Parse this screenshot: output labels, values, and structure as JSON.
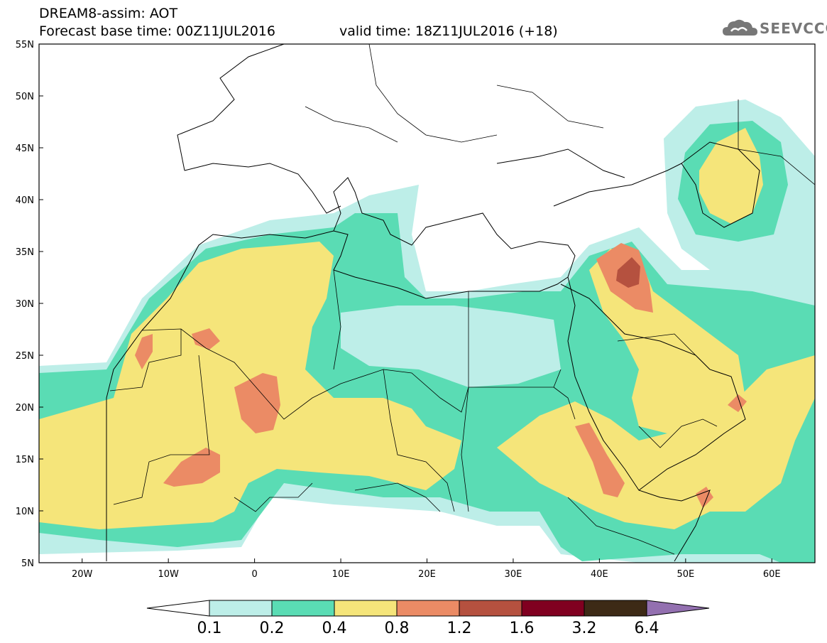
{
  "header": {
    "title": "DREAM8-assim: AOT",
    "base_time": "Forecast base time: 00Z11JUL2016",
    "valid_time": "valid time: 18Z11JUL2016 (+18)"
  },
  "logo": {
    "text": "SEEVCCC",
    "icon": "cloud-icon"
  },
  "map": {
    "lon_range": [
      -25,
      65
    ],
    "lat_range": [
      5,
      55
    ],
    "lon_ticks": [
      {
        "value": -20,
        "label": "20W"
      },
      {
        "value": -10,
        "label": "10W"
      },
      {
        "value": 0,
        "label": "0"
      },
      {
        "value": 10,
        "label": "10E"
      },
      {
        "value": 20,
        "label": "20E"
      },
      {
        "value": 30,
        "label": "30E"
      },
      {
        "value": 40,
        "label": "40E"
      },
      {
        "value": 50,
        "label": "50E"
      },
      {
        "value": 60,
        "label": "60E"
      }
    ],
    "lat_ticks": [
      {
        "value": 55,
        "label": "55N"
      },
      {
        "value": 50,
        "label": "50N"
      },
      {
        "value": 45,
        "label": "45N"
      },
      {
        "value": 40,
        "label": "40N"
      },
      {
        "value": 35,
        "label": "35N"
      },
      {
        "value": 30,
        "label": "30N"
      },
      {
        "value": 25,
        "label": "25N"
      },
      {
        "value": 20,
        "label": "20N"
      },
      {
        "value": 15,
        "label": "15N"
      },
      {
        "value": 10,
        "label": "10N"
      },
      {
        "value": 5,
        "label": "5N"
      }
    ]
  },
  "colorbar": {
    "under_color": "#ffffff",
    "over_color": "#9370b0",
    "bins": [
      {
        "color": "#bdeee8"
      },
      {
        "color": "#5adcb4"
      },
      {
        "color": "#f5e57a"
      },
      {
        "color": "#eb8b65"
      },
      {
        "color": "#b5513f"
      },
      {
        "color": "#800020"
      },
      {
        "color": "#3d2a16"
      }
    ],
    "labels": [
      "0.1",
      "0.2",
      "0.4",
      "0.8",
      "1.2",
      "1.6",
      "3.2",
      "6.4"
    ]
  },
  "aot_fields": {
    "c01": "#bdeee8",
    "c02": "#5adcb4",
    "c04": "#f5e57a",
    "c08": "#eb8b65",
    "c12": "#b5513f"
  }
}
